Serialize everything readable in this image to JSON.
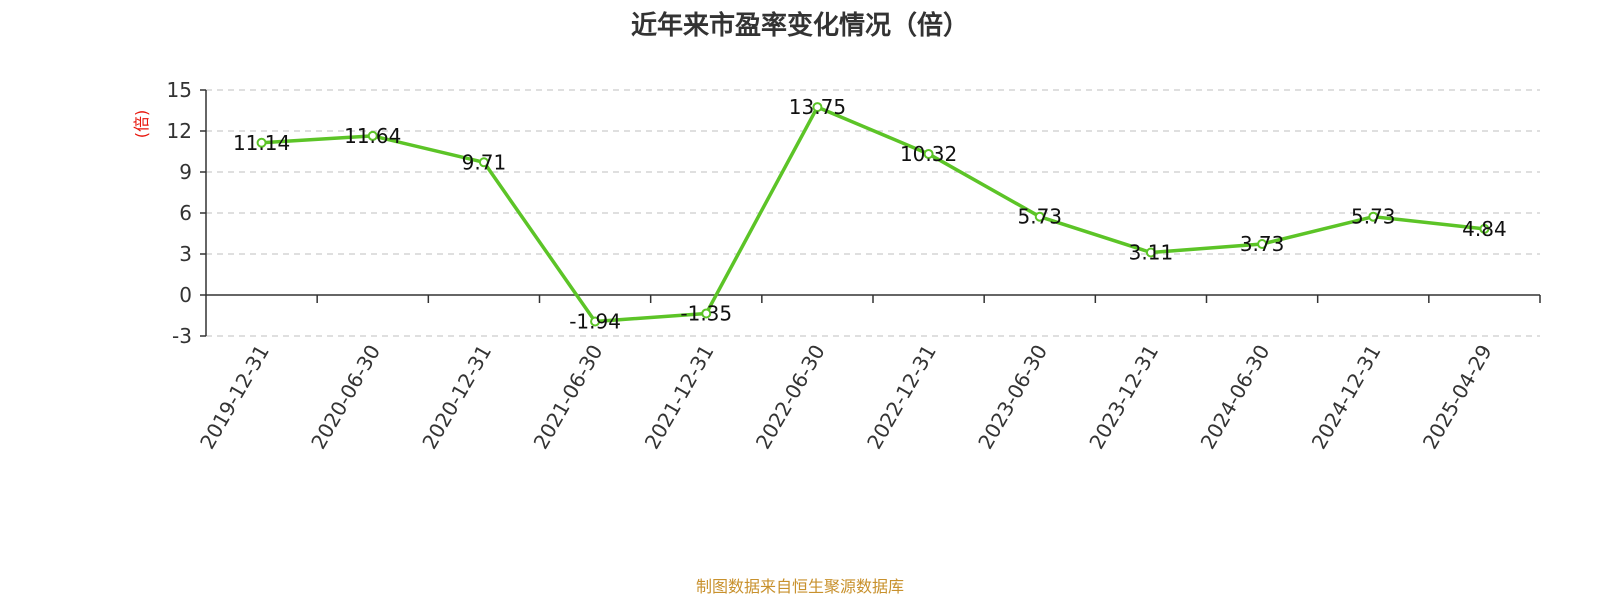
{
  "chart_data": {
    "type": "line",
    "title": "近年来市盈率变化情况（倍）",
    "ylabel": "(倍)",
    "xlabel": "",
    "categories": [
      "2019-12-31",
      "2020-06-30",
      "2020-12-31",
      "2021-06-30",
      "2021-12-31",
      "2022-06-30",
      "2022-12-31",
      "2023-06-30",
      "2023-12-31",
      "2024-06-30",
      "2024-12-31",
      "2025-04-29"
    ],
    "values": [
      11.14,
      11.64,
      9.71,
      -1.94,
      -1.35,
      13.75,
      10.32,
      5.73,
      3.11,
      3.73,
      5.73,
      4.84
    ],
    "value_labels": [
      "11.14",
      "11.64",
      "9.71",
      "-1.94",
      "-1.35",
      "13.75",
      "10.32",
      "5.73",
      "3.11",
      "3.73",
      "5.73",
      "4.84"
    ],
    "ylim": [
      -3,
      15
    ],
    "yticks": [
      15,
      12,
      9,
      6,
      3,
      0,
      -3
    ],
    "grid": true,
    "legend": "none"
  },
  "source_note": "制图数据来自恒生聚源数据库",
  "colors": {
    "series": "#5cc427",
    "ylabel": "#e8160c",
    "source": "#c8912d",
    "grid": "#cccccc",
    "axis": "#333333"
  }
}
